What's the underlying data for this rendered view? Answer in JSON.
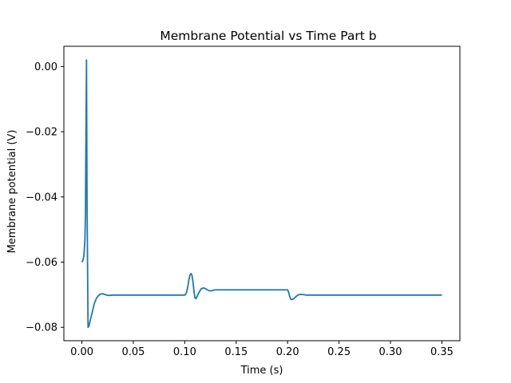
{
  "chart_data": {
    "type": "line",
    "title": "Membrane Potential vs Time Part b",
    "xlabel": "Time (s)",
    "ylabel": "Membrane potential (V)",
    "xlim": [
      -0.0175,
      0.3675
    ],
    "ylim": [
      -0.0841,
      0.0062
    ],
    "xticks": [
      0.0,
      0.05,
      0.1,
      0.15,
      0.2,
      0.25,
      0.3,
      0.35
    ],
    "xtick_labels": [
      "0.00",
      "0.05",
      "0.10",
      "0.15",
      "0.20",
      "0.25",
      "0.30",
      "0.35"
    ],
    "yticks": [
      0.0,
      -0.02,
      -0.04,
      -0.06,
      -0.08
    ],
    "ytick_labels": [
      "0.00",
      "−0.02",
      "−0.04",
      "−0.06",
      "−0.08"
    ],
    "grid": false,
    "line_color": "#1f77b4",
    "series": [
      {
        "x": [
          0.0,
          0.001,
          0.002,
          0.003,
          0.0035,
          0.004,
          0.0045,
          0.005,
          0.006,
          0.007,
          0.008,
          0.01,
          0.012,
          0.014,
          0.016,
          0.018,
          0.02,
          0.022,
          0.024,
          0.026,
          0.028,
          0.03,
          0.035,
          0.04,
          0.05,
          0.07,
          0.09,
          0.1,
          0.101,
          0.102,
          0.103,
          0.104,
          0.105,
          0.106,
          0.107,
          0.108,
          0.109,
          0.11,
          0.111,
          0.112,
          0.114,
          0.116,
          0.118,
          0.12,
          0.122,
          0.124,
          0.126,
          0.128,
          0.13,
          0.135,
          0.14,
          0.15,
          0.17,
          0.19,
          0.2,
          0.201,
          0.202,
          0.203,
          0.204,
          0.206,
          0.208,
          0.21,
          0.212,
          0.214,
          0.216,
          0.218,
          0.22,
          0.225,
          0.23,
          0.25,
          0.3,
          0.35
        ],
        "y": [
          -0.06,
          -0.0595,
          -0.058,
          -0.053,
          -0.045,
          -0.02,
          0.002,
          -0.04,
          -0.08,
          -0.0795,
          -0.078,
          -0.0755,
          -0.0728,
          -0.0712,
          -0.0703,
          -0.0698,
          -0.0697,
          -0.0699,
          -0.0701,
          -0.0702,
          -0.0702,
          -0.0701,
          -0.0701,
          -0.0701,
          -0.0701,
          -0.0701,
          -0.0701,
          -0.0701,
          -0.0698,
          -0.069,
          -0.0675,
          -0.0655,
          -0.064,
          -0.0635,
          -0.064,
          -0.066,
          -0.069,
          -0.071,
          -0.0712,
          -0.0705,
          -0.0692,
          -0.0682,
          -0.0679,
          -0.0681,
          -0.0685,
          -0.0688,
          -0.0688,
          -0.0686,
          -0.0685,
          -0.0685,
          -0.0685,
          -0.0685,
          -0.0685,
          -0.0685,
          -0.0685,
          -0.0692,
          -0.0705,
          -0.0713,
          -0.0715,
          -0.0712,
          -0.0706,
          -0.0701,
          -0.0699,
          -0.0699,
          -0.07,
          -0.0701,
          -0.0701,
          -0.0701,
          -0.0701,
          -0.0701,
          -0.0701,
          -0.0701
        ]
      }
    ]
  }
}
